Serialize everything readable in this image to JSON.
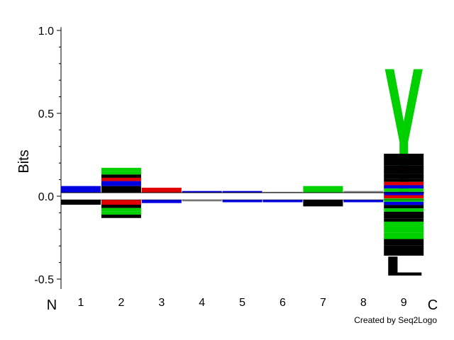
{
  "chart_data": {
    "type": "sequence-logo",
    "ylabel": "Bits",
    "ylim": [
      -0.56,
      1.02
    ],
    "yticks": [
      {
        "value": 1.0,
        "label": "1.0"
      },
      {
        "value": 0.5,
        "label": "0.5"
      },
      {
        "value": 0.0,
        "label": "0.0"
      },
      {
        "value": -0.5,
        "label": "-0.5"
      }
    ],
    "n_terminus_label": "N",
    "c_terminus_label": "C",
    "positions": [
      "1",
      "2",
      "3",
      "4",
      "5",
      "6",
      "7",
      "8",
      "9"
    ],
    "colors": {
      "green": "#00d000",
      "black": "#000000",
      "blue": "#0000e0",
      "red": "#e00000",
      "gray": "#888888"
    },
    "stacks": [
      {
        "position": "1",
        "up": [
          {
            "residue": "",
            "height": 0.04,
            "color": "blue"
          }
        ],
        "down": [
          {
            "residue": "",
            "height": 0.03,
            "color": "black"
          }
        ]
      },
      {
        "position": "2",
        "up": [
          {
            "residue": "",
            "height": 0.04,
            "color": "black"
          },
          {
            "residue": "",
            "height": 0.03,
            "color": "blue"
          },
          {
            "residue": "",
            "height": 0.02,
            "color": "red"
          },
          {
            "residue": "",
            "height": 0.02,
            "color": "black"
          },
          {
            "residue": "",
            "height": 0.02,
            "color": "green"
          },
          {
            "residue": "",
            "height": 0.02,
            "color": "green"
          }
        ],
        "down": [
          {
            "residue": "",
            "height": 0.03,
            "color": "red"
          },
          {
            "residue": "",
            "height": 0.02,
            "color": "black"
          },
          {
            "residue": "",
            "height": 0.02,
            "color": "green"
          },
          {
            "residue": "",
            "height": 0.02,
            "color": "green"
          },
          {
            "residue": "",
            "height": 0.02,
            "color": "black"
          }
        ]
      },
      {
        "position": "3",
        "up": [
          {
            "residue": "",
            "height": 0.03,
            "color": "red"
          }
        ],
        "down": [
          {
            "residue": "",
            "height": 0.02,
            "color": "blue"
          }
        ]
      },
      {
        "position": "4",
        "up": [
          {
            "residue": "",
            "height": 0.01,
            "color": "blue"
          }
        ],
        "down": [
          {
            "residue": "",
            "height": 0.01,
            "color": "gray"
          }
        ]
      },
      {
        "position": "5",
        "up": [
          {
            "residue": "",
            "height": 0.01,
            "color": "blue"
          }
        ],
        "down": [
          {
            "residue": "",
            "height": 0.015,
            "color": "blue"
          }
        ]
      },
      {
        "position": "6",
        "up": [
          {
            "residue": "",
            "height": 0.005,
            "color": "gray"
          }
        ],
        "down": [
          {
            "residue": "",
            "height": 0.015,
            "color": "blue"
          }
        ]
      },
      {
        "position": "7",
        "up": [
          {
            "residue": "",
            "height": 0.04,
            "color": "green"
          }
        ],
        "down": [
          {
            "residue": "",
            "height": 0.04,
            "color": "black"
          }
        ]
      },
      {
        "position": "8",
        "up": [
          {
            "residue": "",
            "height": 0.01,
            "color": "gray"
          }
        ],
        "down": [
          {
            "residue": "",
            "height": 0.015,
            "color": "blue"
          }
        ]
      },
      {
        "position": "9",
        "up": [
          {
            "residue": "Y",
            "height": 0.78,
            "color": "green"
          }
        ],
        "down": [
          {
            "residue": "V",
            "height": 0.07,
            "color": "black"
          },
          {
            "residue": "F",
            "height": 0.05,
            "color": "black"
          },
          {
            "residue": "W",
            "height": 0.03,
            "color": "black"
          },
          {
            "residue": "",
            "height": 0.02,
            "color": "black"
          },
          {
            "residue": "",
            "height": 0.02,
            "color": "red"
          },
          {
            "residue": "",
            "height": 0.02,
            "color": "blue"
          },
          {
            "residue": "",
            "height": 0.02,
            "color": "green"
          },
          {
            "residue": "",
            "height": 0.02,
            "color": "blue"
          },
          {
            "residue": "",
            "height": 0.02,
            "color": "red"
          },
          {
            "residue": "",
            "height": 0.02,
            "color": "green"
          },
          {
            "residue": "",
            "height": 0.02,
            "color": "blue"
          },
          {
            "residue": "",
            "height": 0.02,
            "color": "black"
          },
          {
            "residue": "",
            "height": 0.02,
            "color": "green"
          },
          {
            "residue": "M",
            "height": 0.04,
            "color": "black"
          },
          {
            "residue": "",
            "height": 0.02,
            "color": "black"
          },
          {
            "residue": "Q",
            "height": 0.03,
            "color": "green"
          },
          {
            "residue": "G",
            "height": 0.035,
            "color": "green"
          },
          {
            "residue": "T",
            "height": 0.04,
            "color": "green"
          },
          {
            "residue": "I",
            "height": 0.04,
            "color": "black"
          },
          {
            "residue": "A",
            "height": 0.06,
            "color": "black"
          },
          {
            "residue": "L",
            "height": 0.12,
            "color": "black"
          }
        ]
      }
    ],
    "credit": "Created by Seq2Logo"
  }
}
